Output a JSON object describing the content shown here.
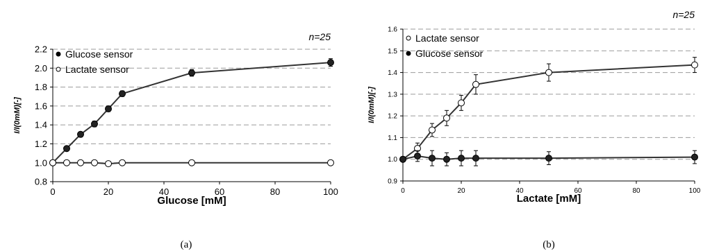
{
  "chart_data": [
    {
      "type": "line",
      "panel_label": "(a)",
      "n_label": "n=25",
      "xlabel": "Glucose [mM]",
      "ylabel": "I/I(0mM)[-]",
      "xlim": [
        0,
        100
      ],
      "ylim": [
        0.8,
        2.2
      ],
      "x_ticks": [
        0,
        20,
        40,
        60,
        80,
        100
      ],
      "y_ticks": [
        0.8,
        1.0,
        1.2,
        1.4,
        1.6,
        1.8,
        2.0,
        2.2
      ],
      "grid": "horizontal dashed",
      "legend_position": "top-left",
      "series": [
        {
          "name": "Glucose sensor",
          "marker": "filled",
          "x": [
            0,
            5,
            10,
            15,
            20,
            25,
            50,
            100
          ],
          "y": [
            1.0,
            1.15,
            1.3,
            1.41,
            1.57,
            1.73,
            1.95,
            2.06
          ],
          "err": [
            0.015,
            0.025,
            0.025,
            0.03,
            0.03,
            0.03,
            0.035,
            0.04
          ]
        },
        {
          "name": "Lactate sensor",
          "marker": "open",
          "x": [
            0,
            5,
            10,
            15,
            20,
            25,
            50,
            100
          ],
          "y": [
            1.0,
            1.0,
            1.0,
            1.0,
            0.99,
            1.0,
            1.0,
            1.0
          ],
          "err": [
            0.01,
            0.01,
            0.01,
            0.01,
            0.01,
            0.01,
            0.01,
            0.01
          ]
        }
      ]
    },
    {
      "type": "line",
      "panel_label": "(b)",
      "n_label": "n=25",
      "xlabel": "Lactate [mM]",
      "ylabel": "I/I(0mM)[-]",
      "xlim": [
        0,
        100
      ],
      "ylim": [
        0.9,
        1.6
      ],
      "x_ticks": [
        0,
        20,
        40,
        60,
        80,
        100
      ],
      "y_ticks": [
        0.9,
        1.0,
        1.1,
        1.2,
        1.3,
        1.4,
        1.5,
        1.6
      ],
      "grid": "horizontal dashed",
      "legend_position": "top-left",
      "series": [
        {
          "name": "Lactate sensor",
          "marker": "open",
          "x": [
            0,
            5,
            10,
            15,
            20,
            25,
            50,
            100
          ],
          "y": [
            1.0,
            1.05,
            1.135,
            1.19,
            1.26,
            1.345,
            1.4,
            1.435
          ],
          "err": [
            0.01,
            0.025,
            0.03,
            0.035,
            0.035,
            0.045,
            0.04,
            0.035
          ]
        },
        {
          "name": "Glucose sensor",
          "marker": "filled",
          "x": [
            0,
            5,
            10,
            15,
            20,
            25,
            50,
            100
          ],
          "y": [
            1.0,
            1.015,
            1.005,
            1.0,
            1.005,
            1.005,
            1.005,
            1.01
          ],
          "err": [
            0.01,
            0.025,
            0.035,
            0.03,
            0.035,
            0.035,
            0.03,
            0.03
          ]
        }
      ]
    }
  ]
}
